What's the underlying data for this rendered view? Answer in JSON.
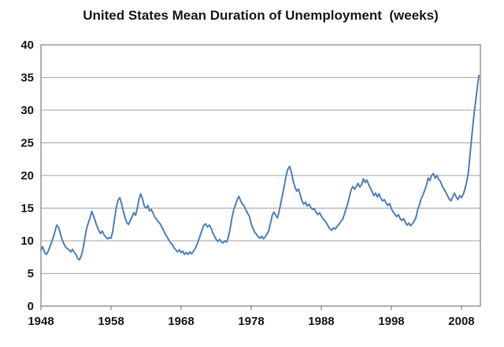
{
  "chart_data": {
    "type": "line",
    "title": "United States Mean Duration of Unemployment  (weeks)",
    "xlabel": "",
    "ylabel": "",
    "x_unit": "year",
    "y_unit": "weeks",
    "xlim": [
      1948,
      2010.7
    ],
    "ylim": [
      0,
      40
    ],
    "x_ticks": [
      1948,
      1958,
      1968,
      1978,
      1988,
      1998,
      2008
    ],
    "y_ticks": [
      0,
      5,
      10,
      15,
      20,
      25,
      30,
      35,
      40
    ],
    "grid": "horizontal-major",
    "legend": "none",
    "x_start": 1948,
    "x_step": 0.25,
    "colors": {
      "line": "#4F81BD",
      "axis": "#808080",
      "gridline": "#a6a6a6",
      "text": "#1a1a1a",
      "background": "#ffffff"
    },
    "series": [
      {
        "name": "Mean duration of unemployment (weeks)",
        "color": "#4F81BD",
        "values": [
          8.6,
          9.1,
          8.3,
          7.9,
          8.3,
          9.0,
          9.7,
          10.5,
          11.4,
          12.4,
          12.1,
          11.2,
          10.2,
          9.6,
          9.1,
          8.8,
          8.6,
          8.3,
          8.7,
          8.2,
          7.9,
          7.3,
          7.1,
          7.7,
          8.7,
          10.3,
          11.8,
          12.7,
          13.5,
          14.5,
          13.8,
          13.0,
          12.2,
          11.6,
          11.1,
          11.5,
          10.9,
          10.6,
          10.3,
          10.5,
          10.4,
          11.5,
          13.3,
          15.1,
          16.2,
          16.6,
          15.7,
          14.5,
          13.5,
          12.8,
          12.5,
          13.1,
          13.7,
          14.3,
          13.9,
          15.0,
          16.4,
          17.2,
          16.4,
          15.3,
          15.0,
          15.4,
          14.6,
          14.8,
          14.2,
          13.6,
          13.3,
          12.9,
          12.6,
          12.1,
          11.6,
          11.0,
          10.6,
          10.1,
          9.7,
          9.4,
          8.9,
          8.6,
          8.3,
          8.6,
          8.2,
          8.4,
          7.9,
          8.2,
          7.9,
          8.3,
          8.0,
          8.4,
          8.8,
          9.4,
          10.1,
          10.9,
          11.7,
          12.4,
          12.6,
          12.1,
          12.4,
          12.0,
          11.3,
          10.7,
          10.2,
          9.9,
          10.2,
          9.8,
          9.7,
          10.0,
          9.8,
          10.6,
          11.9,
          13.5,
          14.7,
          15.5,
          16.3,
          16.8,
          16.1,
          15.6,
          15.3,
          14.7,
          14.2,
          13.7,
          12.6,
          11.9,
          11.3,
          11.0,
          10.6,
          10.4,
          10.7,
          10.3,
          10.6,
          11.0,
          11.5,
          12.7,
          13.9,
          14.4,
          13.9,
          13.5,
          14.6,
          15.9,
          17.2,
          18.6,
          20.1,
          21.0,
          21.4,
          20.4,
          19.1,
          18.2,
          17.6,
          17.9,
          17.0,
          16.1,
          15.6,
          15.9,
          15.3,
          15.6,
          15.1,
          14.8,
          14.9,
          14.4,
          14.0,
          14.3,
          13.8,
          13.4,
          13.1,
          12.7,
          12.2,
          11.8,
          11.6,
          12.0,
          11.8,
          12.2,
          12.5,
          12.9,
          13.2,
          13.9,
          14.8,
          15.6,
          16.7,
          17.8,
          18.3,
          17.9,
          18.3,
          18.8,
          18.2,
          18.6,
          19.5,
          18.9,
          19.3,
          18.6,
          18.1,
          17.5,
          16.9,
          17.3,
          16.7,
          17.2,
          16.5,
          16.1,
          16.3,
          15.8,
          15.4,
          15.7,
          14.9,
          14.4,
          14.1,
          13.7,
          14.0,
          13.4,
          13.1,
          13.4,
          12.8,
          12.4,
          12.7,
          12.3,
          12.6,
          13.0,
          13.5,
          14.7,
          15.5,
          16.4,
          17.0,
          17.7,
          18.5,
          19.6,
          19.2,
          20.0,
          20.3,
          19.6,
          20.0,
          19.4,
          19.1,
          18.4,
          17.9,
          17.5,
          16.9,
          16.4,
          16.1,
          16.7,
          17.3,
          16.7,
          16.3,
          16.9,
          16.6,
          17.1,
          17.9,
          19.0,
          20.6,
          23.5,
          26.2,
          28.9,
          31.2,
          33.4,
          35.3
        ]
      }
    ]
  }
}
